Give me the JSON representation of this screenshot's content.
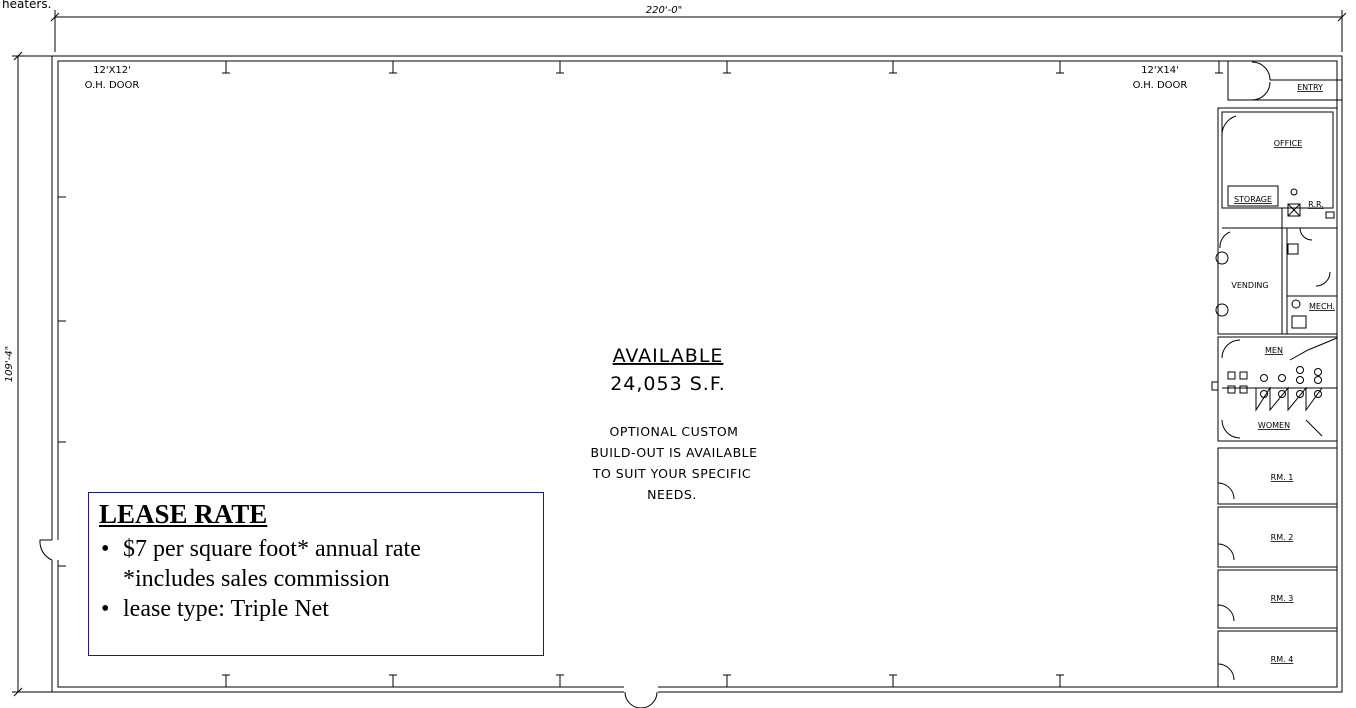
{
  "page_top_text": "heaters.",
  "dims": {
    "width": "220'-0\"",
    "depth": "109'-4\""
  },
  "doors": [
    {
      "size": "12'X12'",
      "label": "O.H. DOOR"
    },
    {
      "size": "12'X14'",
      "label": "O.H. DOOR"
    }
  ],
  "rooms": {
    "entry": "ENTRY",
    "office": "OFFICE",
    "storage": "STORAGE",
    "rr": "R.R.",
    "vending": "VENDING",
    "mech": "MECH.",
    "men": "MEN",
    "women": "WOMEN",
    "rm1": "RM. 1",
    "rm2": "RM. 2",
    "rm3": "RM. 3",
    "rm4": "RM. 4"
  },
  "available": {
    "title": "AVAILABLE",
    "area": "24,053 S.F.",
    "note": [
      "OPTIONAL CUSTOM",
      "BUILD-OUT IS AVAILABLE",
      "TO SUIT YOUR SPECIFIC",
      "NEEDS."
    ]
  },
  "lease": {
    "title": "LEASE RATE",
    "bullet": "•",
    "line1": "$7 per square foot* annual rate",
    "line1_cont": "*includes sales commission",
    "line2": "lease type: Triple Net"
  }
}
